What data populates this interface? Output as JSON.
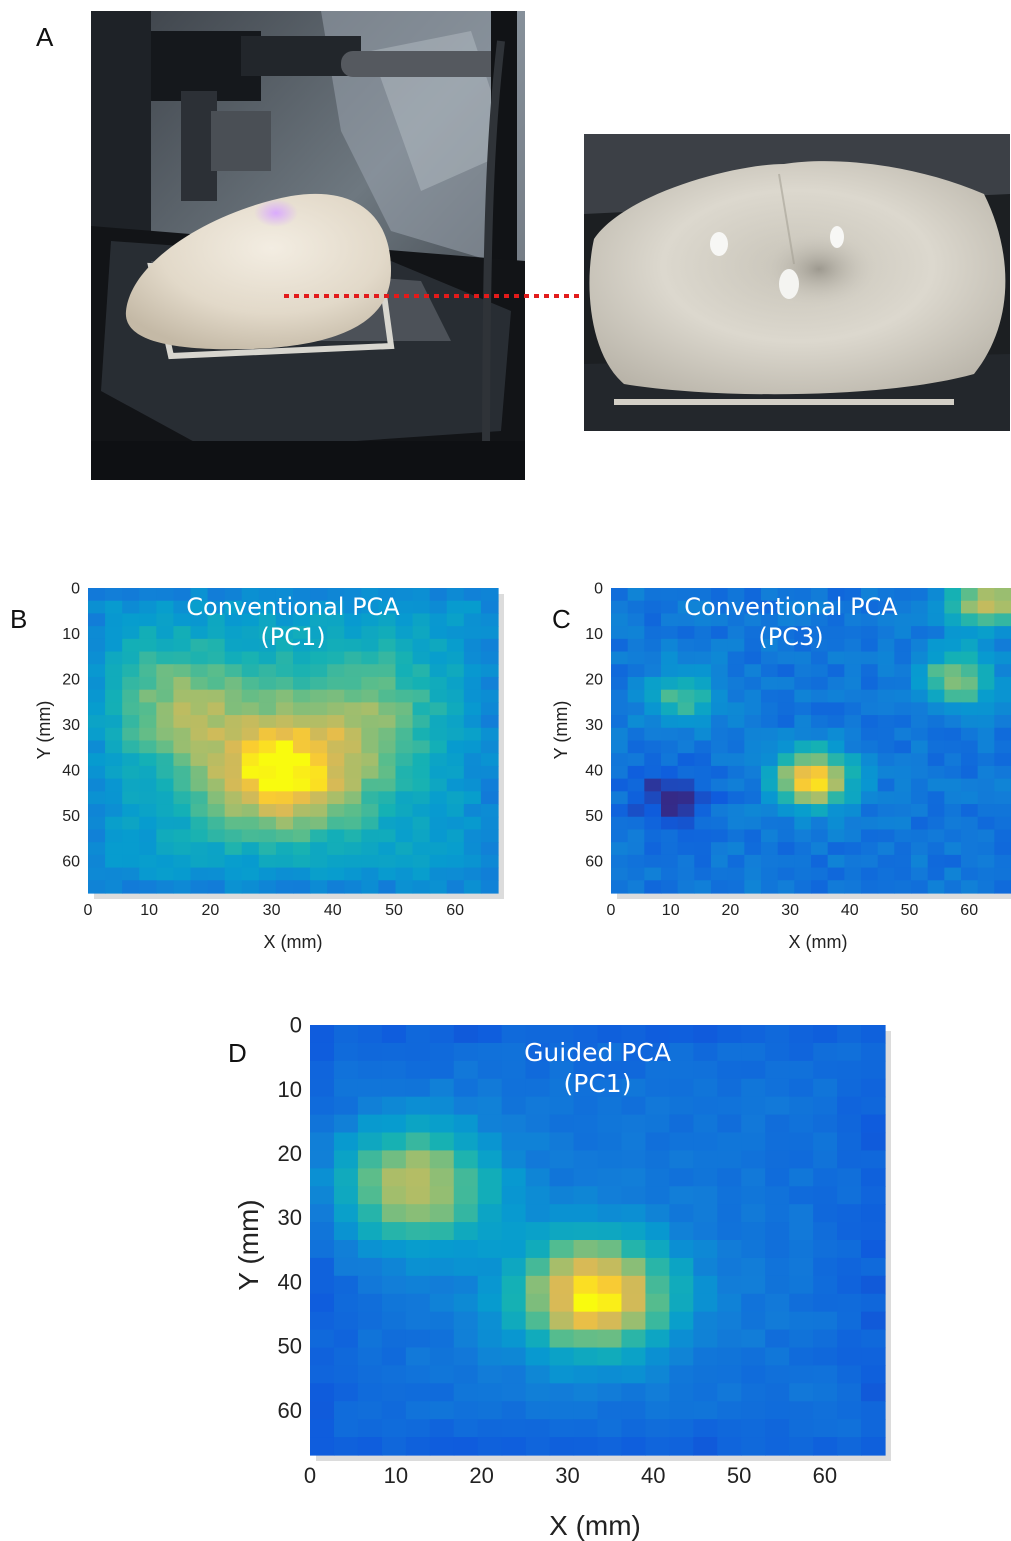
{
  "figure": {
    "panels": {
      "A": "A",
      "B": "B",
      "C": "C",
      "D": "D"
    }
  },
  "chart_data": [
    {
      "panel": "B",
      "type": "heatmap",
      "title": "Conventional PCA",
      "subtitle": "(PC1)",
      "xlabel": "X (mm)",
      "ylabel": "Y (mm)",
      "xticks": [
        0,
        10,
        20,
        30,
        40,
        50,
        60
      ],
      "yticks": [
        0,
        10,
        20,
        30,
        40,
        50,
        60
      ],
      "xlim": [
        0,
        67
      ],
      "ylim": [
        0,
        67
      ],
      "colormap": "parula",
      "hotspots": [
        {
          "x": 32,
          "y": 41,
          "value": 1.0
        },
        {
          "x": 15,
          "y": 26,
          "value": 0.72
        },
        {
          "x": 45,
          "y": 27,
          "value": 0.66
        }
      ]
    },
    {
      "panel": "C",
      "type": "heatmap",
      "title": "Conventional PCA",
      "subtitle": "(PC3)",
      "xlabel": "X (mm)",
      "ylabel": "Y (mm)",
      "xticks": [
        0,
        10,
        20,
        30,
        40,
        50,
        60
      ],
      "yticks": [
        0,
        10,
        20,
        30,
        40,
        50,
        60
      ],
      "xlim": [
        0,
        67
      ],
      "ylim": [
        0,
        67
      ],
      "colormap": "parula",
      "hotspots": [
        {
          "x": 34,
          "y": 42,
          "value": 1.0
        },
        {
          "x": 12,
          "y": 24,
          "value": 0.6
        },
        {
          "x": 58,
          "y": 20,
          "value": 0.72
        },
        {
          "x": 63,
          "y": 3,
          "value": 0.8
        }
      ],
      "lows": [
        {
          "x": 10,
          "y": 46,
          "value": 0.0
        }
      ]
    },
    {
      "panel": "D",
      "type": "heatmap",
      "title": "Guided PCA",
      "subtitle": "(PC1)",
      "xlabel": "X (mm)",
      "ylabel": "Y (mm)",
      "xticks": [
        0,
        10,
        20,
        30,
        40,
        50,
        60
      ],
      "yticks": [
        0,
        10,
        20,
        30,
        40,
        50,
        60
      ],
      "xlim": [
        0,
        67
      ],
      "ylim": [
        0,
        67
      ],
      "colormap": "parula",
      "hotspots": [
        {
          "x": 33,
          "y": 42,
          "value": 1.0
        },
        {
          "x": 12,
          "y": 25,
          "value": 0.82
        }
      ]
    }
  ]
}
